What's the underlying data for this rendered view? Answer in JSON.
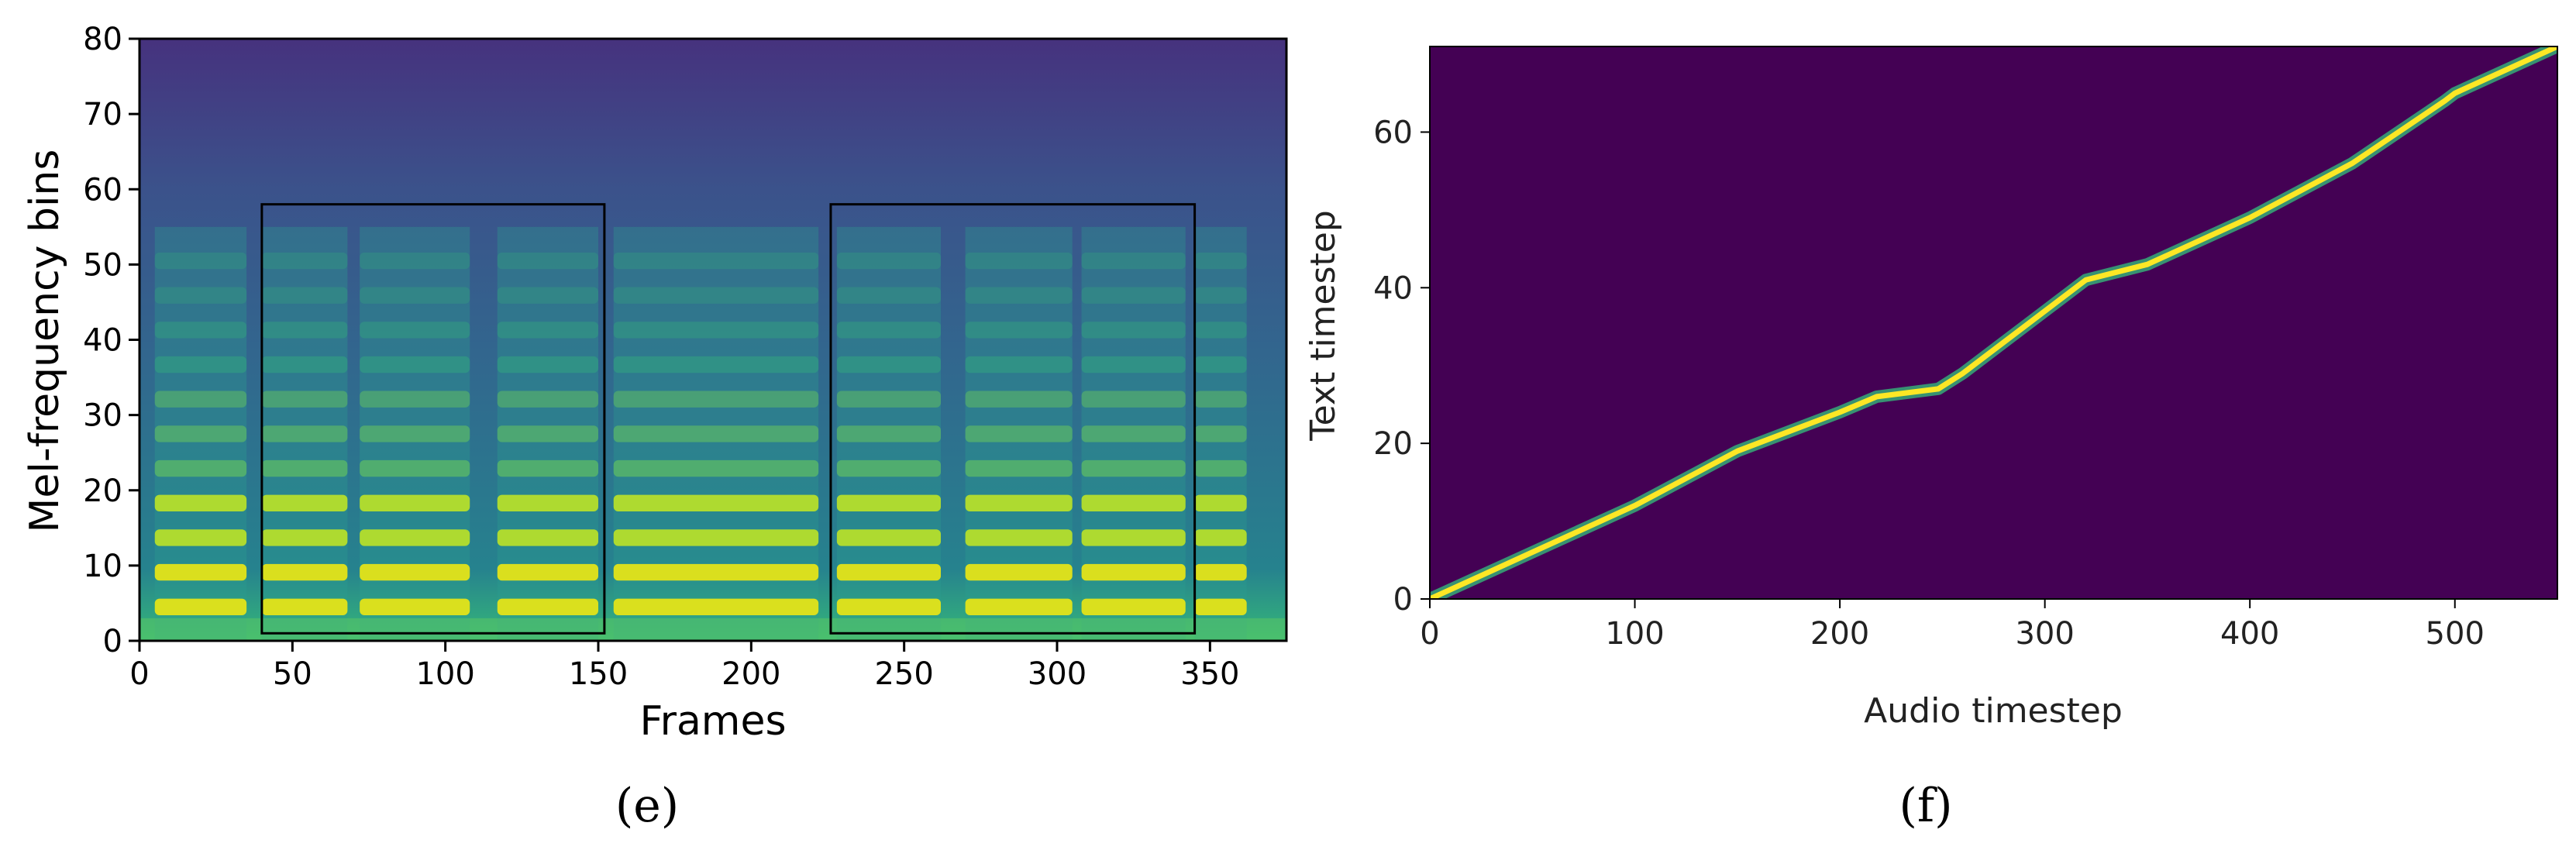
{
  "chart_data": [
    {
      "type": "heatmap",
      "subplot_label": "(e)",
      "xlabel": "Frames",
      "ylabel": "Mel-frequency bins",
      "xlim": [
        0,
        375
      ],
      "ylim": [
        0,
        80
      ],
      "xticks": [
        0,
        50,
        100,
        150,
        200,
        250,
        300,
        350
      ],
      "yticks": [
        0,
        10,
        20,
        30,
        40,
        50,
        60,
        70,
        80
      ],
      "colormap": "viridis",
      "voiced_segments": [
        [
          5,
          35
        ],
        [
          40,
          68
        ],
        [
          72,
          108
        ],
        [
          117,
          150
        ],
        [
          155,
          222
        ],
        [
          228,
          262
        ],
        [
          270,
          305
        ],
        [
          308,
          342
        ],
        [
          345,
          362
        ]
      ],
      "highlight_boxes": [
        {
          "x0": 40,
          "x1": 152,
          "y0": 1,
          "y1": 58
        },
        {
          "x0": 226,
          "x1": 345,
          "y0": 1,
          "y1": 58
        }
      ]
    },
    {
      "type": "heatmap",
      "subplot_label": "(f)",
      "xlabel": "Audio timestep",
      "ylabel": "Text timestep",
      "xlim": [
        0,
        550
      ],
      "ylim": [
        0,
        71
      ],
      "xticks": [
        0,
        100,
        200,
        300,
        400,
        500
      ],
      "yticks": [
        0,
        20,
        40,
        60
      ],
      "background_color": "#440154",
      "line_color": "#fde725",
      "alignment_path": [
        {
          "x": 0,
          "y": 0
        },
        {
          "x": 50,
          "y": 6
        },
        {
          "x": 100,
          "y": 12
        },
        {
          "x": 150,
          "y": 19
        },
        {
          "x": 200,
          "y": 24
        },
        {
          "x": 218,
          "y": 26
        },
        {
          "x": 248,
          "y": 27
        },
        {
          "x": 260,
          "y": 29
        },
        {
          "x": 300,
          "y": 37
        },
        {
          "x": 320,
          "y": 41
        },
        {
          "x": 350,
          "y": 43
        },
        {
          "x": 400,
          "y": 49
        },
        {
          "x": 450,
          "y": 56
        },
        {
          "x": 495,
          "y": 64
        },
        {
          "x": 500,
          "y": 65
        },
        {
          "x": 550,
          "y": 71
        }
      ]
    }
  ]
}
